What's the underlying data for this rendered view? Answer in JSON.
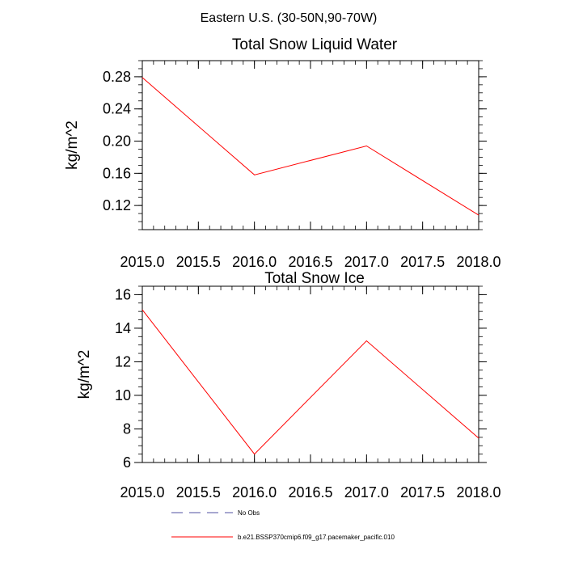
{
  "figure": {
    "title": "Eastern U.S. (30-50N,90-70W)"
  },
  "chart_data": [
    {
      "type": "line",
      "title": "Total Snow Liquid Water",
      "xlabel": "",
      "ylabel": "kg/m^2",
      "xlim": [
        2015.0,
        2018.0
      ],
      "ylim": [
        0.09,
        0.3
      ],
      "x_ticks": [
        2015.0,
        2015.5,
        2016.0,
        2016.5,
        2017.0,
        2017.5,
        2018.0
      ],
      "x_tick_labels": [
        "2015.0",
        "2015.5",
        "2016.0",
        "2016.5",
        "2017.0",
        "2017.5",
        "2018.0"
      ],
      "y_ticks": [
        0.12,
        0.16,
        0.2,
        0.24,
        0.28
      ],
      "y_tick_labels": [
        "0.12",
        "0.16",
        "0.20",
        "0.24",
        "0.28"
      ],
      "grid": false,
      "series": [
        {
          "name": "b.e21.BSSP370cmip6.f09_g17.pacemaker_pacific.010",
          "color": "#ff0000",
          "x": [
            2015.0,
            2016.0,
            2017.0,
            2018.0
          ],
          "y": [
            0.279,
            0.158,
            0.194,
            0.108
          ]
        }
      ]
    },
    {
      "type": "line",
      "title": "Total Snow Ice",
      "xlabel": "",
      "ylabel": "kg/m^2",
      "xlim": [
        2015.0,
        2018.0
      ],
      "ylim": [
        6.0,
        16.5
      ],
      "x_ticks": [
        2015.0,
        2015.5,
        2016.0,
        2016.5,
        2017.0,
        2017.5,
        2018.0
      ],
      "x_tick_labels": [
        "2015.0",
        "2015.5",
        "2016.0",
        "2016.5",
        "2017.0",
        "2017.5",
        "2018.0"
      ],
      "y_ticks": [
        6,
        8,
        10,
        12,
        14,
        16
      ],
      "y_tick_labels": [
        "6",
        "8",
        "10",
        "12",
        "14",
        "16"
      ],
      "grid": false,
      "series": [
        {
          "name": "b.e21.BSSP370cmip6.f09_g17.pacemaker_pacific.010",
          "color": "#ff0000",
          "x": [
            2015.0,
            2016.0,
            2017.0,
            2018.0
          ],
          "y": [
            15.1,
            6.5,
            13.25,
            7.45
          ]
        }
      ]
    }
  ],
  "legend": {
    "placement": "bottom",
    "items": [
      {
        "label": "No Obs",
        "color": "#5050a0",
        "dash": "dashed"
      },
      {
        "label": "b.e21.BSSP370cmip6.f09_g17.pacemaker_pacific.010",
        "color": "#ff0000",
        "dash": "solid"
      }
    ]
  }
}
